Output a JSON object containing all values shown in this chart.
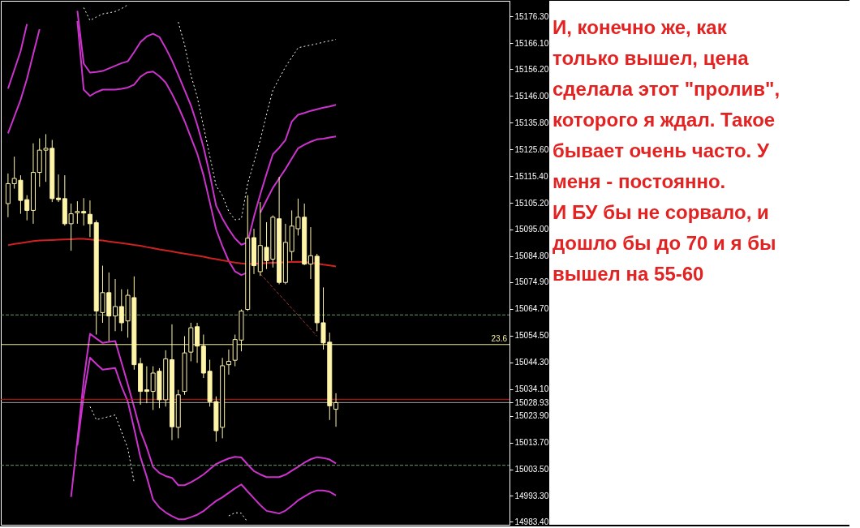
{
  "chart_data": {
    "type": "candlestick",
    "categories": [
      null,
      null,
      null,
      null,
      null,
      null,
      null,
      null,
      null,
      null,
      null,
      null,
      null,
      null,
      null,
      null,
      null,
      null,
      null,
      null,
      null,
      null,
      null,
      null,
      null,
      null,
      null,
      null,
      null,
      null,
      null,
      null,
      null,
      null,
      null,
      null,
      null,
      null,
      null,
      null,
      null,
      null,
      null,
      null,
      null,
      null,
      null,
      null,
      null,
      null,
      null,
      null,
      null
    ],
    "ohlc": [
      [
        15104.9,
        15116.4,
        15099.7,
        15112.5
      ],
      [
        15112.5,
        15122.8,
        15110.6,
        15114.5
      ],
      [
        15113.8,
        15115.7,
        15101.0,
        15106.1
      ],
      [
        15106.4,
        15108.1,
        15098.5,
        15102.3
      ],
      [
        15102.3,
        15127.9,
        15097.2,
        15116.8
      ],
      [
        15116.8,
        15129.8,
        15111.3,
        15125.3
      ],
      [
        15125.3,
        15131.4,
        15113.2,
        15126.0
      ],
      [
        15126.0,
        15129.2,
        15105.5,
        15106.8
      ],
      [
        15107.0,
        15116.0,
        15105.5,
        15106.4
      ],
      [
        15106.8,
        15115.7,
        15096.5,
        15097.2
      ],
      [
        15097.2,
        15104.9,
        15086.9,
        15101.0
      ],
      [
        15101.4,
        15105.8,
        15097.2,
        15101.9
      ],
      [
        15101.9,
        15107.0,
        15096.5,
        15101.3
      ],
      [
        15100.8,
        15106.1,
        15092.1,
        15097.2
      ],
      [
        15097.6,
        15098.5,
        15054.9,
        15063.9
      ],
      [
        15063.3,
        15081.2,
        15059.4,
        15070.9
      ],
      [
        15070.9,
        15078.6,
        15052.4,
        15062.0
      ],
      [
        15062.0,
        15076.1,
        15056.2,
        15065.6
      ],
      [
        15065.6,
        15072.2,
        15056.2,
        15059.4
      ],
      [
        15060.1,
        15072.2,
        15053.7,
        15069.9
      ],
      [
        15069.0,
        15077.1,
        15041.5,
        15043.4
      ],
      [
        15043.8,
        15046.0,
        15028.1,
        15033.2
      ],
      [
        15033.8,
        15042.8,
        15028.7,
        15033.2
      ],
      [
        15033.2,
        15042.8,
        15026.1,
        15040.2
      ],
      [
        15040.9,
        15042.1,
        15026.8,
        15030.0
      ],
      [
        15030.0,
        15048.9,
        15027.4,
        15045.6
      ],
      [
        15045.3,
        15058.8,
        15014.6,
        15019.7
      ],
      [
        15019.5,
        15033.8,
        15015.3,
        15031.9
      ],
      [
        15033.2,
        15054.3,
        15031.9,
        15047.9
      ],
      [
        15048.2,
        15059.4,
        15044.7,
        15057.5
      ],
      [
        15057.9,
        15059.4,
        15044.1,
        15050.5
      ],
      [
        15050.5,
        15054.9,
        15038.3,
        15040.2
      ],
      [
        15040.9,
        15045.3,
        15027.4,
        15029.3
      ],
      [
        15029.3,
        15031.3,
        15014.0,
        15018.2
      ],
      [
        15019.5,
        15046.0,
        15015.3,
        15043.0
      ],
      [
        15043.4,
        15049.2,
        15039.6,
        15044.7
      ],
      [
        15045.1,
        15054.9,
        15042.8,
        15053.0
      ],
      [
        15052.8,
        15064.5,
        15048.5,
        15063.9
      ],
      [
        15064.5,
        15108.1,
        15063.9,
        15091.7
      ],
      [
        15091.9,
        15095.3,
        15078.0,
        15081.2
      ],
      [
        15078.9,
        15105.5,
        15077.3,
        15088.9
      ],
      [
        15088.2,
        15097.8,
        15079.9,
        15083.1
      ],
      [
        15083.7,
        15100.4,
        15080.5,
        15099.7
      ],
      [
        15099.1,
        15115.1,
        15074.1,
        15074.8
      ],
      [
        15074.8,
        15097.2,
        15074.1,
        15090.1
      ],
      [
        15086.6,
        15102.3,
        15083.1,
        15096.3
      ],
      [
        15095.3,
        15106.8,
        15092.7,
        15099.7
      ],
      [
        15099.7,
        15104.9,
        15081.4,
        15081.8
      ],
      [
        15081.8,
        15095.9,
        15076.1,
        15085.0
      ],
      [
        15084.8,
        15085.7,
        15056.2,
        15059.4
      ],
      [
        15059.4,
        15072.9,
        15049.2,
        15051.7
      ],
      [
        15052.0,
        15055.6,
        15022.3,
        15027.7
      ],
      [
        15026.4,
        15032.5,
        15019.7,
        15028.9
      ]
    ],
    "color": "#fff5a8",
    "series": [
      {
        "type": "line",
        "color": "#cc33cc",
        "line_style": "solid",
        "values": [
          15148.8,
          15155.9,
          15163.1,
          15173.4,
          null,
          null,
          null,
          null,
          null,
          null,
          null,
          15178.5,
          15158.4,
          15154.9,
          15155.1,
          15155.5,
          15156.5,
          15157.5,
          15158.5,
          15159.2,
          15162.7,
          15166.5,
          15168.7,
          15169.7,
          15168.5,
          15164.3,
          15159.5,
          15154.0,
          15148.2,
          15142.4,
          15135.0,
          15126.4,
          15116.0,
          15104.1,
          15099.2,
          15095.1,
          15091.6,
          15089.2,
          15090.1,
          15099.9,
          15108.4,
          15116.3,
          15123.7,
          15126.2,
          15129.2,
          15136.2,
          15138.8,
          15139.5,
          15140.3,
          15140.9,
          15141.5,
          15142.0,
          15142.6
        ]
      },
      {
        "type": "line",
        "color": "#cc33cc",
        "line_style": "solid",
        "values": [
          15131.7,
          15138.1,
          15144.5,
          15152.5,
          15162.0,
          15171.5,
          null,
          null,
          null,
          null,
          null,
          15174.6,
          15148.4,
          15146.0,
          15147.4,
          15148.4,
          15148.4,
          15148.4,
          15148.7,
          15149.2,
          15150.3,
          15153.3,
          15154.9,
          15155.3,
          15153.5,
          15151.1,
          15146.8,
          15141.9,
          15136.4,
          15130.2,
          15124.0,
          15115.7,
          15105.4,
          15095.0,
          15088.6,
          15083.0,
          15079.0,
          15077.6,
          15078.6,
          null,
          15101.4,
          15106.2,
          15110.9,
          15114.5,
          15118.1,
          15122.1,
          15126.0,
          15127.4,
          15128.5,
          15129.4,
          15129.7,
          15130.1,
          15130.5
        ]
      },
      {
        "type": "line",
        "color": "#cc33cc",
        "line_style": "solid",
        "values": [
          null,
          null,
          null,
          null,
          null,
          null,
          null,
          null,
          null,
          null,
          14992.9,
          15014.6,
          15037.4,
          15055.2,
          15053.4,
          15051.7,
          15052.1,
          15052.4,
          15044.2,
          15035.9,
          15027.1,
          15018.1,
          15011.8,
          15004.4,
          15002.1,
          15000.9,
          15000.2,
          14997.4,
          14997.4,
          14998.5,
          14999.9,
          15001.5,
          15003.5,
          15005.5,
          15006.6,
          15007.6,
          15008.2,
          15008.0,
          15005.3,
          15002.8,
          15001.5,
          15000.5,
          15000.5,
          15000.5,
          15001.4,
          15002.9,
          15004.4,
          15006.0,
          15007.3,
          15008.1,
          15007.8,
          15007.2,
          15005.7
        ]
      },
      {
        "type": "line",
        "color": "#cc33cc",
        "line_style": "solid",
        "values": [
          null,
          null,
          null,
          null,
          null,
          null,
          null,
          null,
          null,
          null,
          null,
          15012.6,
          15031.5,
          15046.1,
          15043.7,
          15041.5,
          15041.8,
          15042.1,
          15035.1,
          15029.3,
          15019.0,
          15008.1,
          15000.6,
          14991.9,
          14988.9,
          14987.0,
          14985.6,
          14984.4,
          14984.4,
          14985.2,
          14986.1,
          14987.5,
          14989.5,
          14991.4,
          14992.8,
          14994.5,
          14996.2,
          14997.7,
          14995.0,
          14992.4,
          14989.8,
          14987.6,
          14987.1,
          14986.6,
          14987.7,
          14989.6,
          14991.6,
          14993.1,
          14994.5,
          14995.4,
          14995.4,
          14994.9,
          14993.5
        ]
      },
      {
        "type": "line",
        "color": "#ffffff",
        "line_style": "dotted",
        "values": [
          null,
          null,
          null,
          null,
          null,
          null,
          null,
          null,
          null,
          null,
          null,
          null,
          15179.7,
          15174.8,
          15176.1,
          15177.3,
          15177.7,
          15178.2,
          15179.3,
          15180.8,
          null,
          null,
          null,
          null,
          null,
          null,
          null,
          15174.2,
          15165.5,
          15154.0,
          15145.6,
          15134.4,
          15123.0,
          15111.7,
          15108.0,
          15101.9,
          15098.7,
          15099.1,
          15112.5,
          15120.7,
          15129.2,
          15139.0,
          15148.2,
          15152.6,
          15157.1,
          15160.7,
          15164.4,
          15164.9,
          15165.4,
          15165.9,
          15166.5,
          15167.0,
          15167.6
        ]
      },
      {
        "type": "line",
        "color": "#ffffff",
        "line_style": "dotted",
        "values": [
          null,
          null,
          null,
          null,
          null,
          null,
          null,
          null,
          null,
          null,
          null,
          null,
          null,
          15027.4,
          15022.4,
          15023.0,
          15023.6,
          15024.2,
          15017.8,
          15011.4,
          14998.5,
          null,
          null,
          null,
          null,
          null,
          null,
          null,
          null,
          null,
          null,
          null,
          null,
          null,
          null,
          14985.7,
          14986.9,
          14986.7,
          14983.3,
          null,
          null,
          null,
          null,
          null,
          null,
          null,
          null,
          null,
          null,
          null,
          null,
          null,
          null
        ]
      },
      {
        "type": "line",
        "color": "#cc2222",
        "line_style": "solid",
        "values": [
          15089.0,
          15089.5,
          15089.8,
          15090.2,
          15090.6,
          15090.8,
          15090.9,
          15091.0,
          15091.1,
          15091.2,
          15091.3,
          15091.4,
          15091.4,
          15091.2,
          15091.0,
          15090.8,
          15090.4,
          15090.1,
          15089.8,
          15089.5,
          15089.1,
          15088.8,
          15088.3,
          15087.9,
          15087.4,
          15087.0,
          15086.6,
          15086.2,
          15085.8,
          15085.4,
          15085.0,
          15084.6,
          15084.1,
          15083.7,
          15083.2,
          15082.8,
          15082.4,
          15082.1,
          15081.8,
          15081.9,
          15082.1,
          15082.2,
          15082.3,
          15082.4,
          15082.5,
          15082.6,
          15082.7,
          15082.5,
          15082.3,
          15082.0,
          15081.6,
          15081.3,
          15080.9
        ]
      },
      {
        "type": "line",
        "color": "#a03a3a",
        "line_style": "dashed",
        "values": [
          null,
          null,
          null,
          null,
          null,
          null,
          null,
          null,
          null,
          null,
          null,
          null,
          null,
          null,
          null,
          null,
          null,
          null,
          null,
          null,
          null,
          null,
          null,
          null,
          null,
          null,
          null,
          null,
          null,
          null,
          null,
          null,
          null,
          null,
          null,
          null,
          null,
          null,
          null,
          null,
          15078.1,
          15075.5,
          15072.8,
          15070.2,
          15067.6,
          15064.9,
          15062.3,
          15059.6,
          15057.0,
          15054.3,
          null,
          null,
          null
        ]
      }
    ],
    "ref_lines": [
      {
        "axis": "y",
        "value": 15051.1,
        "color": "#f5f0a0",
        "line_style": "solid"
      },
      {
        "axis": "y",
        "value": 15030.2,
        "color": "#e01010",
        "line_style": "solid"
      },
      {
        "axis": "y",
        "value": 15028.93,
        "color": "#a0a0a0",
        "line_style": "solid"
      },
      {
        "axis": "y",
        "value": 15062.4,
        "color": "#6a9a6a",
        "line_style": "dashed"
      },
      {
        "axis": "y",
        "value": 15005.0,
        "color": "#6a9a6a",
        "line_style": "dashed"
      }
    ],
    "ylim": [
      14982.3,
      15182.3
    ],
    "yticks": [
      {
        "value": 15176.3,
        "label": "15176.30"
      },
      {
        "value": 15166.1,
        "label": "15166.10"
      },
      {
        "value": 15156.2,
        "label": "15156.20"
      },
      {
        "value": 15146.0,
        "label": "15146.00"
      },
      {
        "value": 15135.8,
        "label": "15135.80"
      },
      {
        "value": 15125.6,
        "label": "15125.60"
      },
      {
        "value": 15115.4,
        "label": "15115.40"
      },
      {
        "value": 15105.2,
        "label": "15105.20"
      },
      {
        "value": 15095.0,
        "label": "15095.00"
      },
      {
        "value": 15084.8,
        "label": "15084.80"
      },
      {
        "value": 15074.9,
        "label": "15074.90"
      },
      {
        "value": 15064.7,
        "label": "15064.70"
      },
      {
        "value": 15054.5,
        "label": "15054.50"
      },
      {
        "value": 15044.3,
        "label": "15044.30"
      },
      {
        "value": 15034.1,
        "label": "15034.10"
      },
      {
        "value": 15028.93,
        "label": "15028.93"
      },
      {
        "value": 15023.9,
        "label": "15023.90"
      },
      {
        "value": 15013.7,
        "label": "15013.70"
      },
      {
        "value": 15003.5,
        "label": "15003.50"
      },
      {
        "value": 14993.3,
        "label": "14993.30"
      },
      {
        "value": 14983.4,
        "label": "14983.40"
      }
    ],
    "tick_labels": "y",
    "annotations": [
      {
        "text": "23.6",
        "y": 15051.1
      },
      "И, конечно же, как только вышел, цена сделала этот \"пролив\", которого я ждал. Такое бывает очень часто. У меня - постоянно.",
      "И БУ бы не сорвало, и дошло бы до 70 и я бы вышел на 55-60"
    ]
  }
}
